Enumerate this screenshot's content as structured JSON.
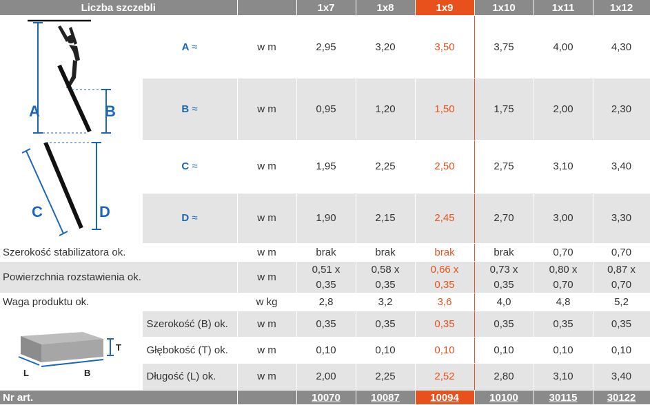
{
  "header": {
    "title": "Liczba szczebli",
    "columns": [
      "1x7",
      "1x8",
      "1x9",
      "1x10",
      "1x11",
      "1x12"
    ]
  },
  "highlight_color": "#e8511c",
  "diagram_ladder": {
    "labels": [
      "A",
      "B",
      "C",
      "D"
    ]
  },
  "diagram_box": {
    "labels": [
      "T",
      "L",
      "B"
    ]
  },
  "rows_main": [
    {
      "label": "A",
      "approx": "≈",
      "unit": "w m",
      "values": [
        "2,95",
        "3,20",
        "3,50",
        "3,75",
        "4,00",
        "4,30"
      ]
    },
    {
      "label": "B",
      "approx": "≈",
      "unit": "w m",
      "values": [
        "0,95",
        "1,20",
        "1,50",
        "1,75",
        "2,00",
        "2,30"
      ]
    },
    {
      "label": "C",
      "approx": "≈",
      "unit": "w m",
      "values": [
        "1,95",
        "2,25",
        "2,50",
        "2,75",
        "3,10",
        "3,40"
      ]
    },
    {
      "label": "D",
      "approx": "≈",
      "unit": "w m",
      "values": [
        "1,90",
        "2,15",
        "2,45",
        "2,70",
        "3,00",
        "3,30"
      ]
    }
  ],
  "row_stab": {
    "label": "Szerokość stabilizatora ok.",
    "unit": "w m",
    "values": [
      "brak",
      "brak",
      "brak",
      "brak",
      "0,70",
      "0,70"
    ]
  },
  "row_area": {
    "label": "Powierzchnia rozstawienia ok.",
    "unit": "w m",
    "line1": [
      "0,51 x",
      "0,58 x",
      "0,66 x",
      "0,73 x",
      "0,80 x",
      "0,87 x"
    ],
    "line2": [
      "0,35",
      "0,35",
      "0,35",
      "0,35",
      "0,70",
      "0,70"
    ]
  },
  "row_weight": {
    "label": "Waga produktu ok.",
    "unit": "w kg",
    "values": [
      "2,8",
      "3,2",
      "3,6",
      "4,0",
      "4,8",
      "5,2"
    ]
  },
  "rows_pack": [
    {
      "label": "Szerokość (B) ok.",
      "unit": "w m",
      "values": [
        "0,35",
        "0,35",
        "0,35",
        "0,35",
        "0,35",
        "0,35"
      ]
    },
    {
      "label": "Głębokość (T) ok.",
      "unit": "w m",
      "values": [
        "0,10",
        "0,10",
        "0,10",
        "0,10",
        "0,10",
        "0,10"
      ]
    },
    {
      "label": "Długość (L) ok.",
      "unit": "w m",
      "values": [
        "2,00",
        "2,25",
        "2,52",
        "2,80",
        "3,10",
        "3,40"
      ]
    }
  ],
  "footer": {
    "label": "Nr art.",
    "values": [
      "10070",
      "10087",
      "10094",
      "10100",
      "30115",
      "30122"
    ]
  }
}
